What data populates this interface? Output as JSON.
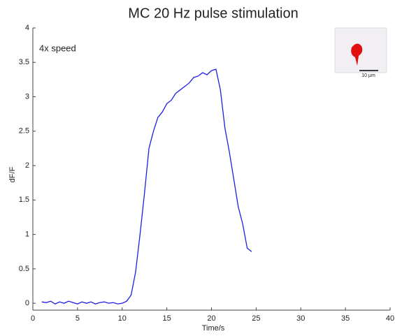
{
  "chart_data": {
    "type": "line",
    "title": "MC 20 Hz pulse stimulation",
    "annotation": "4x speed",
    "scale_bar_label": "10 μm",
    "x_label": "Time/s",
    "y_label": "dF/F",
    "x": [
      1,
      1.5,
      2,
      2.5,
      3,
      3.5,
      4,
      4.5,
      5,
      5.5,
      6,
      6.5,
      7,
      7.5,
      8,
      8.5,
      9,
      9.5,
      10,
      10.5,
      11,
      11.5,
      12,
      12.5,
      13,
      13.5,
      14,
      14.5,
      15,
      15.5,
      16,
      16.5,
      17,
      17.5,
      18,
      18.5,
      19,
      19.5,
      20,
      20.5,
      21,
      21.5,
      22,
      22.5,
      23,
      23.5,
      24,
      24.5
    ],
    "series": [
      {
        "color": "#1f1fe6",
        "values": [
          0.02,
          0.01,
          0.03,
          -0.01,
          0.02,
          0.0,
          0.03,
          0.01,
          -0.01,
          0.02,
          0.0,
          0.02,
          -0.01,
          0.01,
          0.02,
          0.0,
          0.01,
          -0.01,
          0.0,
          0.03,
          0.12,
          0.45,
          1.0,
          1.6,
          2.25,
          2.5,
          2.7,
          2.78,
          2.9,
          2.95,
          3.05,
          3.1,
          3.15,
          3.2,
          3.28,
          3.3,
          3.35,
          3.32,
          3.38,
          3.4,
          3.1,
          2.55,
          2.2,
          1.8,
          1.4,
          1.15,
          0.8,
          0.75
        ]
      }
    ],
    "xlim": [
      0,
      40
    ],
    "xticks": [
      0,
      5,
      10,
      15,
      20,
      25,
      30,
      35,
      40
    ],
    "ylim": [
      -0.1,
      4
    ],
    "yticks": [
      0,
      0.5,
      1,
      1.5,
      2,
      2.5,
      3,
      3.5,
      4
    ]
  }
}
